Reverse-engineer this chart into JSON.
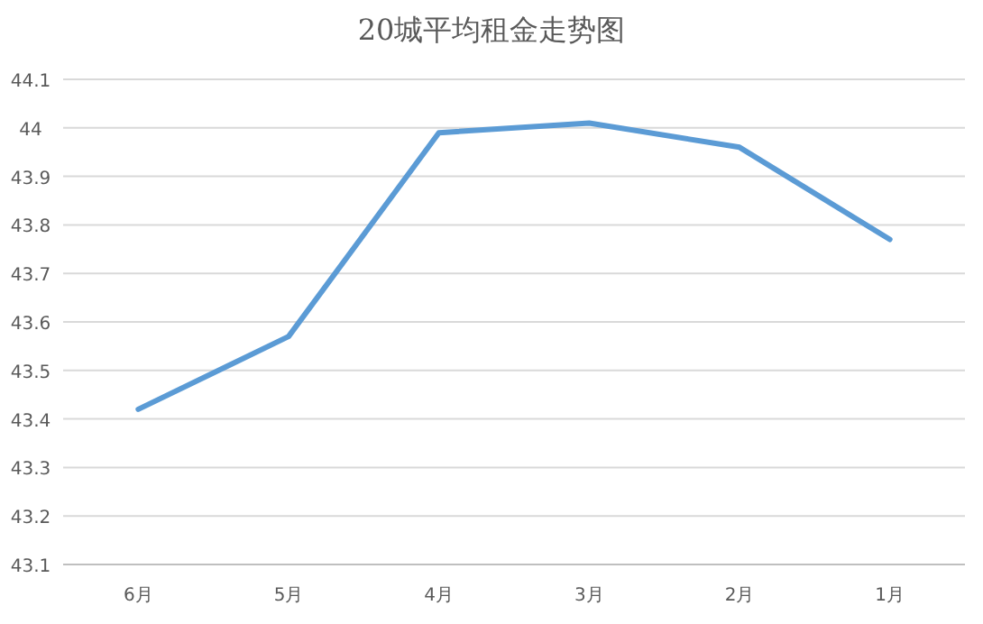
{
  "chart_data": {
    "type": "line",
    "title": "20城平均租金走势图",
    "categories": [
      "6月",
      "5月",
      "4月",
      "3月",
      "2月",
      "1月"
    ],
    "series": [
      {
        "color": "#5b9bd5",
        "values": [
          43.42,
          43.57,
          43.99,
          44.01,
          43.96,
          43.77
        ]
      }
    ],
    "ylim": [
      43.1,
      44.1
    ],
    "yticks": [
      43.1,
      43.2,
      43.3,
      43.4,
      43.5,
      43.6,
      43.7,
      43.8,
      43.9,
      {
        "value": 44,
        "label": "44"
      },
      44.1
    ],
    "grid": "y",
    "marker": "none",
    "line_style": "solid"
  }
}
